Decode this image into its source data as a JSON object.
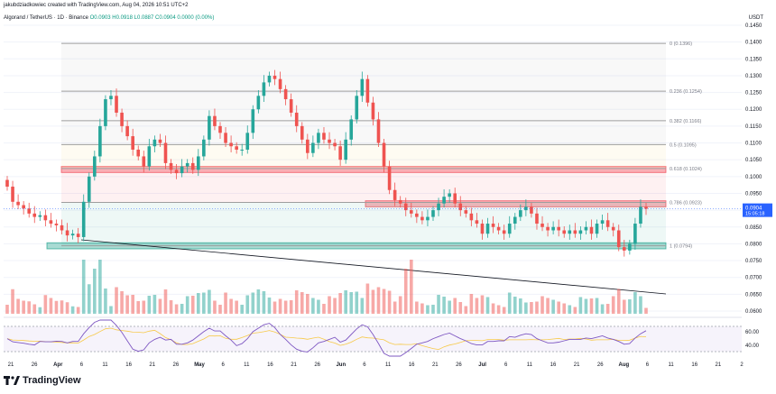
{
  "header": {
    "credit": "jakubdziadkowiec created with TradingView.com, Aug 04, 2026 10:51 UTC+2",
    "symbol": "Algorand / TetherUS · 1D · Binance",
    "ohlc": "O0.0903 H0.0918 L0.0887 C0.0904 0.0000 (0.00%)",
    "currency": "USDT"
  },
  "price_axis": {
    "ticks": [
      "0.1450",
      "0.1400",
      "0.1350",
      "0.1300",
      "0.1250",
      "0.1200",
      "0.1150",
      "0.1100",
      "0.1050",
      "0.1000",
      "0.0950",
      "0.0900",
      "0.0850",
      "0.0800",
      "0.0750",
      "0.0700",
      "0.0650",
      "0.0600"
    ],
    "last_price": "0.0904",
    "countdown": "15:05:18",
    "last_price_color": "#2962ff"
  },
  "rsi_axis": {
    "ticks": [
      "60.00",
      "40.00"
    ]
  },
  "time_axis": {
    "labels": [
      "21",
      "26",
      "Apr",
      "6",
      "11",
      "16",
      "21",
      "26",
      "May",
      "6",
      "11",
      "16",
      "21",
      "26",
      "Jun",
      "6",
      "11",
      "16",
      "21",
      "26",
      "Jul",
      "6",
      "11",
      "16",
      "21",
      "26",
      "Aug",
      "6",
      "11",
      "16",
      "21",
      "2"
    ]
  },
  "fib_levels": [
    {
      "label": "0 (0.1396)",
      "price": 0.1396
    },
    {
      "label": "0.236 (0.1254)",
      "price": 0.1254
    },
    {
      "label": "0.382 (0.1166)",
      "price": 0.1166
    },
    {
      "label": "0.5 (0.1095)",
      "price": 0.1095
    },
    {
      "label": "0.618 (0.1024)",
      "price": 0.1024
    },
    {
      "label": "0.786 (0.0923)",
      "price": 0.0923
    },
    {
      "label": "1 (0.0794)",
      "price": 0.0794
    }
  ],
  "zones": [
    {
      "name": "resistance-zone-upper",
      "from": 0.1012,
      "to": 0.103,
      "color": "#f23645"
    },
    {
      "name": "resistance-zone-lower",
      "from": 0.091,
      "to": 0.0928,
      "color": "#f23645"
    },
    {
      "name": "support-zone",
      "from": 0.0785,
      "to": 0.0803,
      "color": "#089981"
    }
  ],
  "colors": {
    "up": "#26a69a",
    "down": "#ef5350",
    "rsi": "#7e57c2",
    "rsi_ma": "#f7c948"
  },
  "chart_data": {
    "type": "candlestick",
    "closes": [
      0.097,
      0.0925,
      0.0915,
      0.0905,
      0.089,
      0.088,
      0.0885,
      0.087,
      0.086,
      0.0855,
      0.084,
      0.0825,
      0.083,
      0.082,
      0.0925,
      0.1,
      0.106,
      0.115,
      0.123,
      0.124,
      0.119,
      0.115,
      0.112,
      0.108,
      0.106,
      0.103,
      0.109,
      0.111,
      0.11,
      0.104,
      0.102,
      0.101,
      0.103,
      0.104,
      0.102,
      0.106,
      0.111,
      0.118,
      0.115,
      0.113,
      0.11,
      0.109,
      0.108,
      0.108,
      0.113,
      0.12,
      0.124,
      0.128,
      0.13,
      0.129,
      0.126,
      0.123,
      0.119,
      0.115,
      0.111,
      0.107,
      0.11,
      0.113,
      0.111,
      0.11,
      0.109,
      0.105,
      0.111,
      0.117,
      0.124,
      0.129,
      0.122,
      0.117,
      0.11,
      0.103,
      0.096,
      0.093,
      0.092,
      0.09,
      0.089,
      0.088,
      0.087,
      0.088,
      0.09,
      0.092,
      0.094,
      0.095,
      0.092,
      0.09,
      0.089,
      0.087,
      0.086,
      0.083,
      0.086,
      0.085,
      0.084,
      0.083,
      0.086,
      0.088,
      0.09,
      0.091,
      0.089,
      0.086,
      0.085,
      0.084,
      0.085,
      0.084,
      0.083,
      0.084,
      0.083,
      0.084,
      0.085,
      0.083,
      0.086,
      0.087,
      0.085,
      0.084,
      0.079,
      0.078,
      0.08,
      0.086,
      0.091,
      0.0904
    ]
  }
}
